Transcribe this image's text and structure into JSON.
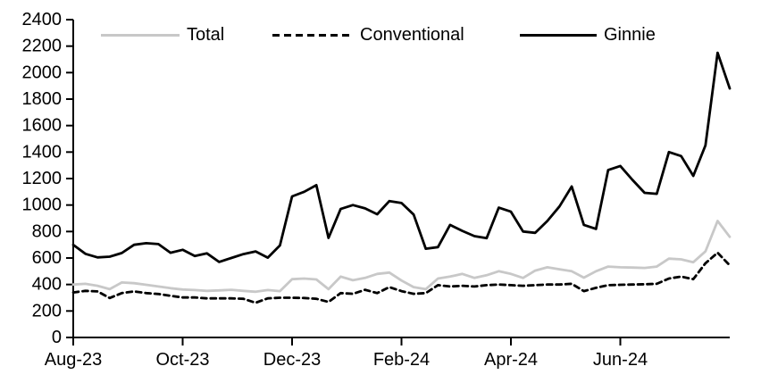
{
  "chart_data": {
    "type": "line",
    "title": "",
    "x_axis": {
      "tick_labels": [
        "Aug-23",
        "Oct-23",
        "Dec-23",
        "Feb-24",
        "Apr-24",
        "Jun-24"
      ],
      "tick_month_offsets": [
        0,
        2,
        4,
        6,
        8,
        10
      ],
      "span_months": 12,
      "frequency": "weekly"
    },
    "y_axis": {
      "min": 0,
      "max": 2400,
      "step": 200,
      "tick_labels": [
        "0",
        "200",
        "400",
        "600",
        "800",
        "1000",
        "1200",
        "1400",
        "1600",
        "1800",
        "2000",
        "2200",
        "2400"
      ]
    },
    "legend_position": "top",
    "grid": false,
    "series": [
      {
        "name": "Total",
        "color": "#c8c8c8",
        "style": "solid",
        "values": [
          400,
          405,
          390,
          365,
          415,
          410,
          398,
          385,
          372,
          362,
          358,
          352,
          355,
          360,
          352,
          345,
          358,
          350,
          440,
          445,
          438,
          365,
          460,
          432,
          450,
          480,
          490,
          430,
          380,
          365,
          445,
          460,
          480,
          450,
          470,
          500,
          480,
          450,
          505,
          530,
          515,
          500,
          452,
          500,
          535,
          530,
          528,
          525,
          535,
          595,
          590,
          568,
          650,
          880,
          760
        ]
      },
      {
        "name": "Conventional",
        "color": "#000000",
        "style": "dashed",
        "values": [
          340,
          352,
          348,
          298,
          335,
          348,
          335,
          328,
          315,
          302,
          302,
          295,
          295,
          295,
          292,
          262,
          295,
          300,
          300,
          298,
          292,
          268,
          335,
          330,
          360,
          335,
          380,
          350,
          330,
          335,
          395,
          385,
          390,
          385,
          395,
          400,
          395,
          390,
          395,
          400,
          400,
          405,
          350,
          375,
          395,
          398,
          400,
          402,
          405,
          445,
          460,
          440,
          560,
          640,
          545
        ]
      },
      {
        "name": "Ginnie",
        "color": "#000000",
        "style": "solid",
        "values": [
          700,
          632,
          605,
          610,
          638,
          700,
          712,
          705,
          640,
          662,
          615,
          635,
          570,
          600,
          630,
          650,
          603,
          695,
          1065,
          1100,
          1150,
          752,
          970,
          1000,
          975,
          930,
          1030,
          1015,
          928,
          670,
          682,
          850,
          805,
          765,
          750,
          980,
          950,
          800,
          790,
          880,
          990,
          1140,
          850,
          820,
          1265,
          1295,
          1190,
          1092,
          1085,
          1400,
          1370,
          1220,
          1450,
          2150,
          1880
        ]
      }
    ]
  },
  "colors": {
    "axis": "#000000",
    "text": "#000000",
    "background": "#ffffff",
    "total_line": "#c8c8c8",
    "black_line": "#000000"
  }
}
